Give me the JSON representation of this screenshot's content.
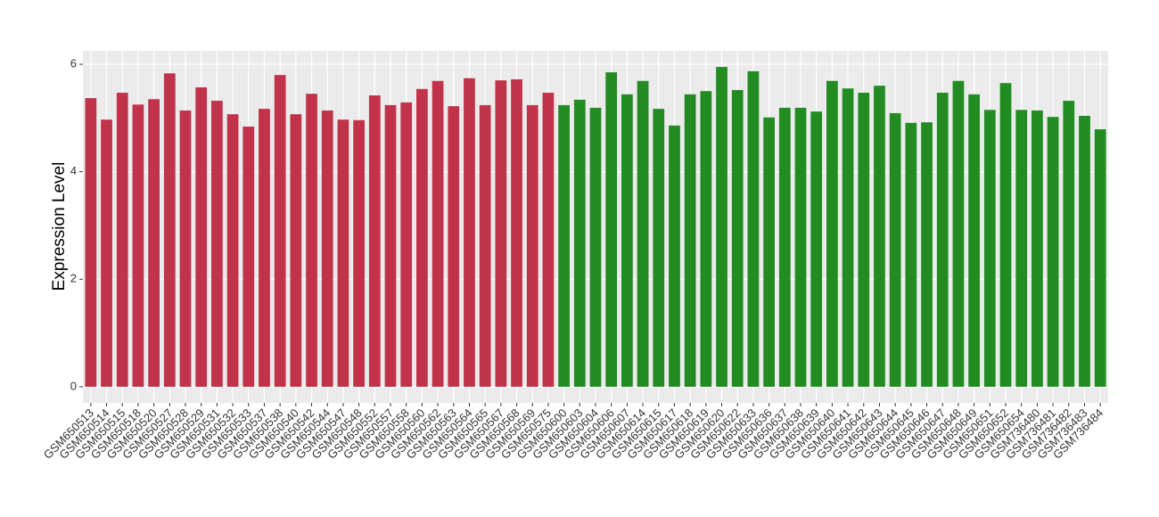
{
  "chart_data": {
    "type": "bar",
    "y_label": "Expression Level",
    "categories": [
      "GSM650513",
      "GSM650514",
      "GSM650515",
      "GSM650518",
      "GSM650520",
      "GSM650527",
      "GSM650528",
      "GSM650529",
      "GSM650531",
      "GSM650532",
      "GSM650533",
      "GSM650537",
      "GSM650538",
      "GSM650540",
      "GSM650542",
      "GSM650544",
      "GSM650547",
      "GSM650548",
      "GSM650552",
      "GSM650557",
      "GSM650558",
      "GSM650560",
      "GSM650562",
      "GSM650563",
      "GSM650564",
      "GSM650565",
      "GSM650567",
      "GSM650568",
      "GSM650569",
      "GSM650575",
      "GSM650600",
      "GSM650603",
      "GSM650604",
      "GSM650606",
      "GSM650607",
      "GSM650614",
      "GSM650615",
      "GSM650617",
      "GSM650618",
      "GSM650619",
      "GSM650620",
      "GSM650622",
      "GSM650633",
      "GSM650636",
      "GSM650637",
      "GSM650638",
      "GSM650639",
      "GSM650640",
      "GSM650641",
      "GSM650642",
      "GSM650643",
      "GSM650644",
      "GSM650645",
      "GSM650646",
      "GSM650647",
      "GSM650648",
      "GSM650649",
      "GSM650651",
      "GSM650652",
      "GSM650654",
      "GSM736480",
      "GSM736481",
      "GSM736482",
      "GSM736483",
      "GSM736484"
    ],
    "values": [
      5.37,
      4.97,
      5.47,
      5.25,
      5.35,
      5.83,
      5.14,
      5.57,
      5.32,
      5.07,
      4.84,
      5.17,
      5.8,
      5.07,
      5.45,
      5.14,
      4.97,
      4.96,
      5.42,
      5.24,
      5.29,
      5.54,
      5.69,
      5.22,
      5.74,
      5.24,
      5.7,
      5.72,
      5.24,
      5.47,
      5.24,
      5.34,
      5.19,
      5.85,
      5.44,
      5.69,
      5.17,
      4.86,
      5.44,
      5.5,
      5.95,
      5.52,
      5.87,
      5.01,
      5.19,
      5.19,
      5.12,
      5.69,
      5.55,
      5.47,
      5.6,
      5.09,
      4.91,
      4.92,
      5.47,
      5.69,
      5.44,
      5.15,
      5.65,
      5.15,
      5.14,
      5.02,
      5.32,
      5.04,
      4.79
    ],
    "colors": [
      "#c0334a",
      "#c0334a",
      "#c0334a",
      "#c0334a",
      "#c0334a",
      "#c0334a",
      "#c0334a",
      "#c0334a",
      "#c0334a",
      "#c0334a",
      "#c0334a",
      "#c0334a",
      "#c0334a",
      "#c0334a",
      "#c0334a",
      "#c0334a",
      "#c0334a",
      "#c0334a",
      "#c0334a",
      "#c0334a",
      "#c0334a",
      "#c0334a",
      "#c0334a",
      "#c0334a",
      "#c0334a",
      "#c0334a",
      "#c0334a",
      "#c0334a",
      "#c0334a",
      "#c0334a",
      "#228b22",
      "#228b22",
      "#228b22",
      "#228b22",
      "#228b22",
      "#228b22",
      "#228b22",
      "#228b22",
      "#228b22",
      "#228b22",
      "#228b22",
      "#228b22",
      "#228b22",
      "#228b22",
      "#228b22",
      "#228b22",
      "#228b22",
      "#228b22",
      "#228b22",
      "#228b22",
      "#228b22",
      "#228b22",
      "#228b22",
      "#228b22",
      "#228b22",
      "#228b22",
      "#228b22",
      "#228b22",
      "#228b22",
      "#228b22",
      "#228b22",
      "#228b22",
      "#228b22",
      "#228b22",
      "#228b22"
    ],
    "ylim": [
      -0.3,
      6.25
    ],
    "yticks": [
      0,
      2,
      4,
      6
    ],
    "grid": true
  }
}
